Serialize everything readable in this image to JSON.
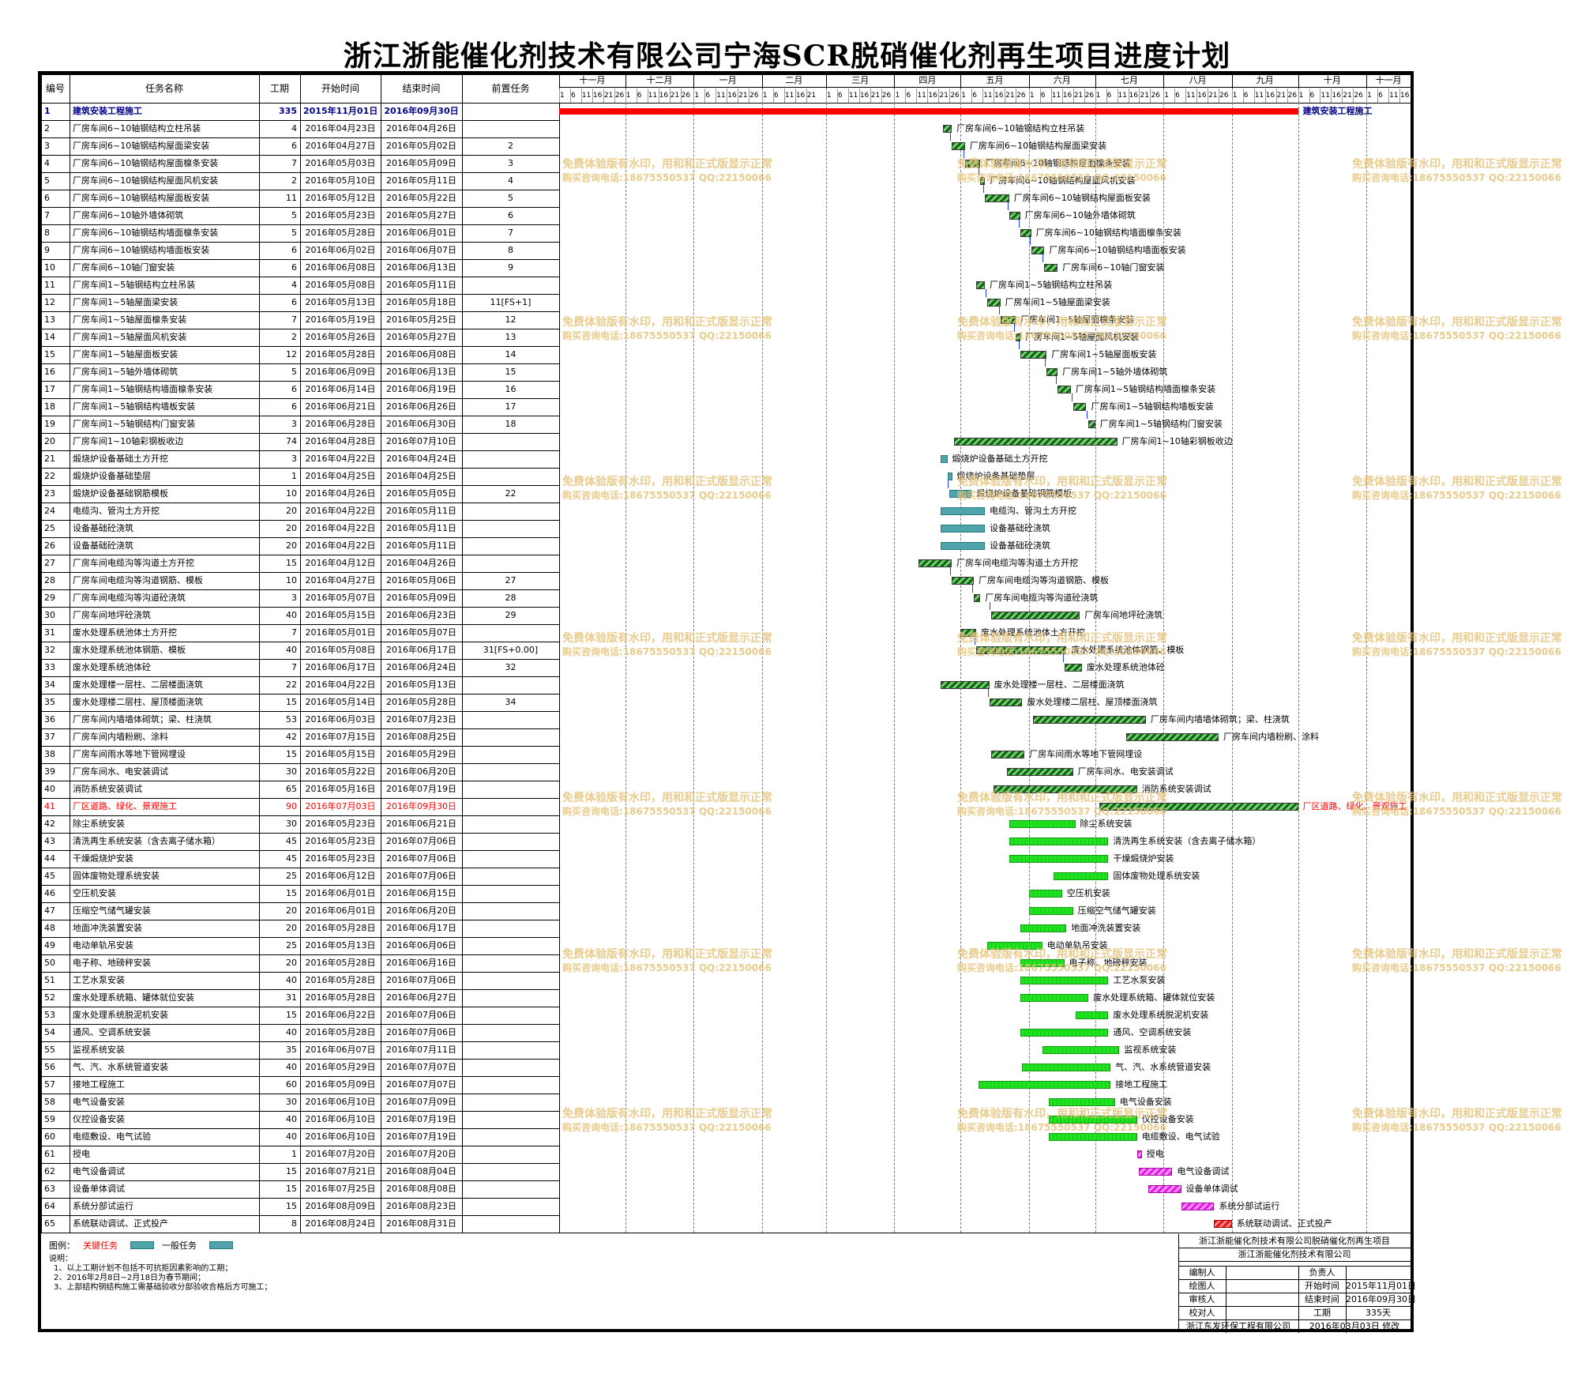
{
  "title": "浙江浙能催化剂技术有限公司宁海SCR脱硝催化剂再生项目进度计划",
  "columns": {
    "id": "编号",
    "name": "任务名称",
    "duration": "工期",
    "start": "开始时间",
    "end": "结束时间",
    "pred": "前置任务"
  },
  "months": [
    "十一月",
    "十二月",
    "一月",
    "二月",
    "三月",
    "四月",
    "五月",
    "六月",
    "七月",
    "八月",
    "九月",
    "十月",
    "十一月"
  ],
  "day_ticks": [
    [
      "1",
      "6",
      "11",
      "16",
      "21",
      "26"
    ],
    [
      "1",
      "6",
      "11",
      "16",
      "21",
      "26"
    ],
    [
      "1",
      "6",
      "11",
      "16",
      "21",
      "26"
    ],
    [
      "1",
      "6",
      "11",
      "16",
      "21"
    ],
    [
      "1",
      "6",
      "11",
      "16",
      "21",
      "26"
    ],
    [
      "1",
      "6",
      "11",
      "16",
      "21",
      "26"
    ],
    [
      "1",
      "6",
      "11",
      "16",
      "21",
      "26"
    ],
    [
      "1",
      "6",
      "11",
      "16",
      "21",
      "26"
    ],
    [
      "1",
      "6",
      "11",
      "16",
      "21",
      "26"
    ],
    [
      "1",
      "6",
      "11",
      "16",
      "21",
      "26"
    ],
    [
      "1",
      "6",
      "11",
      "16",
      "21",
      "26"
    ],
    [
      "1",
      "6",
      "11",
      "16",
      "21",
      "26"
    ],
    [
      "1",
      "6",
      "11",
      "16"
    ]
  ],
  "colors": {
    "summary": "#ff0000",
    "critical_text": "#ff0000",
    "legend_critical": "#4fa3ab",
    "legend_normal": "#4fa3ab"
  },
  "tasks": [
    {
      "id": "1",
      "name": "建筑安装工程施工",
      "dur": "335",
      "start": "2015年11月01日",
      "end": "2016年09月30日",
      "pred": "",
      "summary": true,
      "bar_label": "建筑安装工程施工",
      "style": "summary"
    },
    {
      "id": "2",
      "name": "厂房车间6~10轴钢结构立柱吊装",
      "dur": "4",
      "start": "2016年04月23日",
      "end": "2016年04月26日",
      "pred": "",
      "style": "crit"
    },
    {
      "id": "3",
      "name": "厂房车间6~10轴钢结构屋面梁安装",
      "dur": "6",
      "start": "2016年04月27日",
      "end": "2016年05月02日",
      "pred": "2",
      "style": "crit"
    },
    {
      "id": "4",
      "name": "厂房车间6~10轴钢结构屋面檩条安装",
      "dur": "7",
      "start": "2016年05月03日",
      "end": "2016年05月09日",
      "pred": "3",
      "style": "crit"
    },
    {
      "id": "5",
      "name": "厂房车间6~10轴钢结构屋面风机安装",
      "dur": "2",
      "start": "2016年05月10日",
      "end": "2016年05月11日",
      "pred": "4",
      "style": "crit"
    },
    {
      "id": "6",
      "name": "厂房车间6~10轴钢结构屋面板安装",
      "dur": "11",
      "start": "2016年05月12日",
      "end": "2016年05月22日",
      "pred": "5",
      "style": "crit"
    },
    {
      "id": "7",
      "name": "厂房车间6~10轴外墙体砌筑",
      "dur": "5",
      "start": "2016年05月23日",
      "end": "2016年05月27日",
      "pred": "6",
      "style": "crit"
    },
    {
      "id": "8",
      "name": "厂房车间6~10轴钢结构墙面檩条安装",
      "dur": "5",
      "start": "2016年05月28日",
      "end": "2016年06月01日",
      "pred": "7",
      "style": "crit"
    },
    {
      "id": "9",
      "name": "厂房车间6~10轴钢结构墙面板安装",
      "dur": "6",
      "start": "2016年06月02日",
      "end": "2016年06月07日",
      "pred": "8",
      "style": "crit"
    },
    {
      "id": "10",
      "name": "厂房车间6~10轴门窗安装",
      "dur": "6",
      "start": "2016年06月08日",
      "end": "2016年06月13日",
      "pred": "9",
      "style": "crit"
    },
    {
      "id": "11",
      "name": "厂房车间1~5轴钢结构立柱吊装",
      "dur": "4",
      "start": "2016年05月08日",
      "end": "2016年05月11日",
      "pred": "",
      "style": "crit"
    },
    {
      "id": "12",
      "name": "厂房车间1~5轴屋面梁安装",
      "dur": "6",
      "start": "2016年05月13日",
      "end": "2016年05月18日",
      "pred": "11[FS+1]",
      "style": "crit"
    },
    {
      "id": "13",
      "name": "厂房车间1~5轴屋面檩条安装",
      "dur": "7",
      "start": "2016年05月19日",
      "end": "2016年05月25日",
      "pred": "12",
      "style": "crit"
    },
    {
      "id": "14",
      "name": "厂房车间1~5轴屋面风机安装",
      "dur": "2",
      "start": "2016年05月26日",
      "end": "2016年05月27日",
      "pred": "13",
      "style": "crit"
    },
    {
      "id": "15",
      "name": "厂房车间1~5轴屋面板安装",
      "dur": "12",
      "start": "2016年05月28日",
      "end": "2016年06月08日",
      "pred": "14",
      "style": "crit"
    },
    {
      "id": "16",
      "name": "厂房车间1~5轴外墙体砌筑",
      "dur": "5",
      "start": "2016年06月09日",
      "end": "2016年06月13日",
      "pred": "15",
      "style": "crit"
    },
    {
      "id": "17",
      "name": "厂房车间1~5轴钢结构墙面檩条安装",
      "dur": "6",
      "start": "2016年06月14日",
      "end": "2016年06月19日",
      "pred": "16",
      "style": "crit"
    },
    {
      "id": "18",
      "name": "厂房车间1~5轴钢结构墙板安装",
      "dur": "6",
      "start": "2016年06月21日",
      "end": "2016年06月26日",
      "pred": "17",
      "style": "crit"
    },
    {
      "id": "19",
      "name": "厂房车间1~5轴钢结构门窗安装",
      "dur": "3",
      "start": "2016年06月28日",
      "end": "2016年06月30日",
      "pred": "18",
      "style": "crit"
    },
    {
      "id": "20",
      "name": "厂房车间1~10轴彩钢板收边",
      "dur": "74",
      "start": "2016年04月28日",
      "end": "2016年07月10日",
      "pred": "",
      "style": "crit"
    },
    {
      "id": "21",
      "name": "煅烧炉设备基础土方开挖",
      "dur": "3",
      "start": "2016年04月22日",
      "end": "2016年04月24日",
      "pred": "",
      "style": "norm"
    },
    {
      "id": "22",
      "name": "煅烧炉设备基础垫层",
      "dur": "1",
      "start": "2016年04月25日",
      "end": "2016年04月25日",
      "pred": "",
      "style": "norm"
    },
    {
      "id": "23",
      "name": "煅烧炉设备基础钢筋模板",
      "dur": "10",
      "start": "2016年04月26日",
      "end": "2016年05月05日",
      "pred": "22",
      "style": "norm"
    },
    {
      "id": "24",
      "name": "电缆沟、管沟土方开挖",
      "dur": "20",
      "start": "2016年04月22日",
      "end": "2016年05月11日",
      "pred": "",
      "style": "norm"
    },
    {
      "id": "25",
      "name": "设备基础砼浇筑",
      "dur": "20",
      "start": "2016年04月22日",
      "end": "2016年05月11日",
      "pred": "",
      "style": "norm"
    },
    {
      "id": "26",
      "name": "设备基础砼浇筑",
      "dur": "20",
      "start": "2016年04月22日",
      "end": "2016年05月11日",
      "pred": "",
      "style": "norm"
    },
    {
      "id": "27",
      "name": "厂房车间电缆沟等沟道土方开挖",
      "dur": "15",
      "start": "2016年04月12日",
      "end": "2016年04月26日",
      "pred": "",
      "style": "crit"
    },
    {
      "id": "28",
      "name": "厂房车间电缆沟等沟道钢筋、模板",
      "dur": "10",
      "start": "2016年04月27日",
      "end": "2016年05月06日",
      "pred": "27",
      "style": "crit"
    },
    {
      "id": "29",
      "name": "厂房车间电缆沟等沟道砼浇筑",
      "dur": "3",
      "start": "2016年05月07日",
      "end": "2016年05月09日",
      "pred": "28",
      "style": "crit"
    },
    {
      "id": "30",
      "name": "厂房车间地坪砼浇筑",
      "dur": "40",
      "start": "2016年05月15日",
      "end": "2016年06月23日",
      "pred": "29",
      "style": "crit"
    },
    {
      "id": "31",
      "name": "废水处理系统池体土方开挖",
      "dur": "7",
      "start": "2016年05月01日",
      "end": "2016年05月07日",
      "pred": "",
      "style": "crit"
    },
    {
      "id": "32",
      "name": "废水处理系统池体钢筋、模板",
      "dur": "40",
      "start": "2016年05月08日",
      "end": "2016年06月17日",
      "pred": "31[FS+0.00]",
      "style": "crit"
    },
    {
      "id": "33",
      "name": "废水处理系统池体砼",
      "dur": "7",
      "start": "2016年06月17日",
      "end": "2016年06月24日",
      "pred": "32",
      "style": "crit"
    },
    {
      "id": "34",
      "name": "废水处理楼一层柱、二层楼面浇筑",
      "dur": "22",
      "start": "2016年04月22日",
      "end": "2016年05月13日",
      "pred": "",
      "style": "crit"
    },
    {
      "id": "35",
      "name": "废水处理楼二层柱、屋顶楼面浇筑",
      "dur": "15",
      "start": "2016年05月14日",
      "end": "2016年05月28日",
      "pred": "34",
      "style": "crit"
    },
    {
      "id": "36",
      "name": "厂房车间内墙墙体砌筑；梁、柱浇筑",
      "dur": "53",
      "start": "2016年06月03日",
      "end": "2016年07月23日",
      "pred": "",
      "style": "crit"
    },
    {
      "id": "37",
      "name": "厂房车间内墙粉刷、涂料",
      "dur": "42",
      "start": "2016年07月15日",
      "end": "2016年08月25日",
      "pred": "",
      "style": "crit"
    },
    {
      "id": "38",
      "name": "厂房车间雨水等地下管网埋设",
      "dur": "15",
      "start": "2016年05月15日",
      "end": "2016年05月29日",
      "pred": "",
      "style": "crit"
    },
    {
      "id": "39",
      "name": "厂房车间水、电安装调试",
      "dur": "30",
      "start": "2016年05月22日",
      "end": "2016年06月20日",
      "pred": "",
      "style": "crit"
    },
    {
      "id": "40",
      "name": "消防系统安装调试",
      "dur": "65",
      "start": "2016年05月16日",
      "end": "2016年07月19日",
      "pred": "",
      "style": "crit"
    },
    {
      "id": "41",
      "name": "厂区道路、绿化、景观施工",
      "dur": "90",
      "start": "2016年07月03日",
      "end": "2016年09月30日",
      "pred": "",
      "style": "crit",
      "red": true
    },
    {
      "id": "42",
      "name": "除尘系统安装",
      "dur": "30",
      "start": "2016年05月23日",
      "end": "2016年06月21日",
      "pred": "",
      "style": "green"
    },
    {
      "id": "43",
      "name": "清洗再生系统安装（含去离子储水箱）",
      "dur": "45",
      "start": "2016年05月23日",
      "end": "2016年07月06日",
      "pred": "",
      "style": "green"
    },
    {
      "id": "44",
      "name": "干燥煅烧炉安装",
      "dur": "45",
      "start": "2016年05月23日",
      "end": "2016年07月06日",
      "pred": "",
      "style": "green"
    },
    {
      "id": "45",
      "name": "固体废物处理系统安装",
      "dur": "25",
      "start": "2016年06月12日",
      "end": "2016年07月06日",
      "pred": "",
      "style": "green"
    },
    {
      "id": "46",
      "name": "空压机安装",
      "dur": "15",
      "start": "2016年06月01日",
      "end": "2016年06月15日",
      "pred": "",
      "style": "green"
    },
    {
      "id": "47",
      "name": "压缩空气储气罐安装",
      "dur": "20",
      "start": "2016年06月01日",
      "end": "2016年06月20日",
      "pred": "",
      "style": "green"
    },
    {
      "id": "48",
      "name": "地面冲洗装置安装",
      "dur": "20",
      "start": "2016年05月28日",
      "end": "2016年06月17日",
      "pred": "",
      "style": "green"
    },
    {
      "id": "49",
      "name": "电动单轨吊安装",
      "dur": "25",
      "start": "2016年05月13日",
      "end": "2016年06月06日",
      "pred": "",
      "style": "green"
    },
    {
      "id": "50",
      "name": "电子称、地磅秤安装",
      "dur": "20",
      "start": "2016年05月28日",
      "end": "2016年06月16日",
      "pred": "",
      "style": "green"
    },
    {
      "id": "51",
      "name": "工艺水泵安装",
      "dur": "40",
      "start": "2016年05月28日",
      "end": "2016年07月06日",
      "pred": "",
      "style": "green"
    },
    {
      "id": "52",
      "name": "废水处理系统箱、罐体就位安装",
      "dur": "31",
      "start": "2016年05月28日",
      "end": "2016年06月27日",
      "pred": "",
      "style": "green"
    },
    {
      "id": "53",
      "name": "废水处理系统脱泥机安装",
      "dur": "15",
      "start": "2016年06月22日",
      "end": "2016年07月06日",
      "pred": "",
      "style": "green"
    },
    {
      "id": "54",
      "name": "通风、空调系统安装",
      "dur": "40",
      "start": "2016年05月28日",
      "end": "2016年07月06日",
      "pred": "",
      "style": "green"
    },
    {
      "id": "55",
      "name": "监视系统安装",
      "dur": "35",
      "start": "2016年06月07日",
      "end": "2016年07月11日",
      "pred": "",
      "style": "green"
    },
    {
      "id": "56",
      "name": "气、汽、水系统管道安装",
      "dur": "40",
      "start": "2016年05月29日",
      "end": "2016年07月07日",
      "pred": "",
      "style": "green"
    },
    {
      "id": "57",
      "name": "接地工程施工",
      "dur": "60",
      "start": "2016年05月09日",
      "end": "2016年07月07日",
      "pred": "",
      "style": "green"
    },
    {
      "id": "58",
      "name": "电气设备安装",
      "dur": "30",
      "start": "2016年06月10日",
      "end": "2016年07月09日",
      "pred": "",
      "style": "green"
    },
    {
      "id": "59",
      "name": "仪控设备安装",
      "dur": "40",
      "start": "2016年06月10日",
      "end": "2016年07月19日",
      "pred": "",
      "style": "green"
    },
    {
      "id": "60",
      "name": "电缆敷设、电气试验",
      "dur": "40",
      "start": "2016年06月10日",
      "end": "2016年07月19日",
      "pred": "",
      "style": "green"
    },
    {
      "id": "61",
      "name": "授电",
      "dur": "1",
      "start": "2016年07月20日",
      "end": "2016年07月20日",
      "pred": "",
      "style": "mag"
    },
    {
      "id": "62",
      "name": "电气设备调试",
      "dur": "15",
      "start": "2016年07月21日",
      "end": "2016年08月04日",
      "pred": "",
      "style": "mag"
    },
    {
      "id": "63",
      "name": "设备单体调试",
      "dur": "15",
      "start": "2016年07月25日",
      "end": "2016年08月08日",
      "pred": "",
      "style": "mag"
    },
    {
      "id": "64",
      "name": "系统分部试运行",
      "dur": "15",
      "start": "2016年08月09日",
      "end": "2016年08月23日",
      "pred": "",
      "style": "mag"
    },
    {
      "id": "65",
      "name": "系统联动调试、正式投产",
      "dur": "8",
      "start": "2016年08月24日",
      "end": "2016年08月31日",
      "pred": "",
      "style": "red"
    }
  ],
  "bar_labels_extra": {
    "65": "系统联动调试、正式投产"
  },
  "watermark": {
    "line1": "免费体验版有水印，用和和正式版显示正常",
    "line2": "购买咨询电话:18675550537 QQ:22150066"
  },
  "legend": {
    "label": "图例：",
    "critical": "关键任务",
    "normal": "一般任务"
  },
  "notes": [
    "说明：",
    "1、以上工期计划不包括不可抗拒因素影响的工期；",
    "2、2016年2月8日~2月18日为春节期间；",
    "3、上部结构钢结构施工需基础验收分部验收合格后方可施工；"
  ],
  "title_block": {
    "project": "浙江浙能催化剂技术有限公司脱硝催化剂再生项目",
    "company": "浙江浙能催化剂技术有限公司",
    "rows": [
      [
        "编制人",
        "",
        "负责人",
        ""
      ],
      [
        "绘图人",
        "",
        "开始时间",
        "2015年11月01日"
      ],
      [
        "审核人",
        "",
        "结束时间",
        "2016年09月30日"
      ],
      [
        "校对人",
        "",
        "工期",
        "335天"
      ]
    ],
    "footer_left": "浙江东发环保工程有限公司",
    "footer_right": "2016年03月03日 修改"
  }
}
